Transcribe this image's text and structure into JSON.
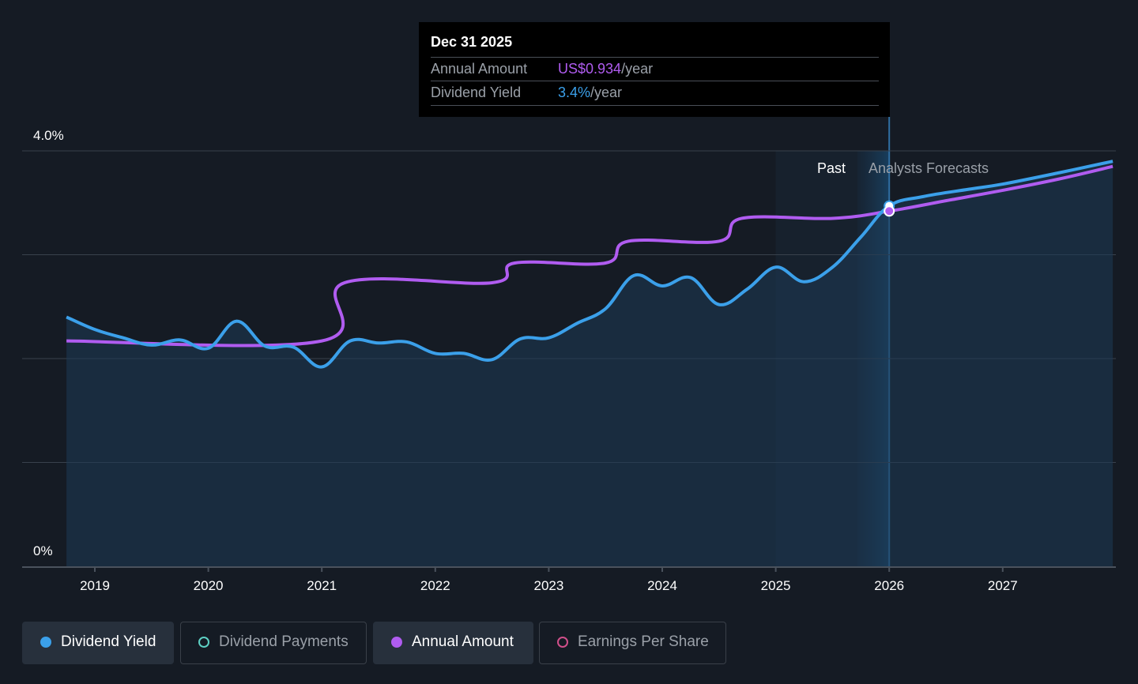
{
  "tooltip": {
    "date": "Dec 31 2025",
    "rows": [
      {
        "label": "Annual Amount",
        "value": "US$0.934",
        "suffix": "/year",
        "color": "#b05cf0"
      },
      {
        "label": "Dividend Yield",
        "value": "3.4%",
        "suffix": "/year",
        "color": "#3ba0ea"
      }
    ]
  },
  "regions": {
    "past": "Past",
    "forecast": "Analysts Forecasts"
  },
  "legend": [
    {
      "label": "Dividend Yield",
      "color": "#3ba0ea",
      "active": true,
      "filled": true
    },
    {
      "label": "Dividend Payments",
      "color": "#5ed0c4",
      "active": false,
      "filled": false
    },
    {
      "label": "Annual Amount",
      "color": "#b05cf0",
      "active": true,
      "filled": true
    },
    {
      "label": "Earnings Per Share",
      "color": "#d04f8a",
      "active": false,
      "filled": false
    }
  ],
  "chart_data": {
    "type": "line",
    "x_tick_labels": [
      "2019",
      "2020",
      "2021",
      "2022",
      "2023",
      "2024",
      "2025",
      "2026",
      "2027"
    ],
    "y_tick_labels": [
      "4.0%",
      "0%"
    ],
    "ylim": [
      0,
      4.0
    ],
    "xlim": [
      2018.4,
      2027.97
    ],
    "grid": true,
    "legend_position": "bottom",
    "series": [
      {
        "name": "Dividend Yield",
        "unit": "%",
        "color": "#3ba0ea",
        "x": [
          2018.75,
          2019.0,
          2019.25,
          2019.5,
          2019.75,
          2020.0,
          2020.25,
          2020.5,
          2020.75,
          2021.0,
          2021.25,
          2021.5,
          2021.75,
          2022.0,
          2022.25,
          2022.5,
          2022.75,
          2023.0,
          2023.25,
          2023.5,
          2023.75,
          2024.0,
          2024.25,
          2024.5,
          2024.75,
          2025.0,
          2025.25,
          2025.5,
          2025.75,
          2026.0,
          2026.3,
          2026.7,
          2027.0,
          2027.5,
          2027.97
        ],
        "y": [
          2.4,
          2.28,
          2.2,
          2.13,
          2.18,
          2.1,
          2.36,
          2.12,
          2.11,
          1.92,
          2.17,
          2.15,
          2.16,
          2.05,
          2.05,
          1.99,
          2.19,
          2.2,
          2.34,
          2.48,
          2.8,
          2.7,
          2.78,
          2.52,
          2.67,
          2.88,
          2.74,
          2.88,
          3.17,
          3.47,
          3.56,
          3.63,
          3.68,
          3.79,
          3.9
        ]
      },
      {
        "name": "Annual Amount",
        "unit": "US$/year",
        "color": "#b05cf0",
        "x": [
          2018.75,
          2021.0,
          2021.2,
          2022.5,
          2022.7,
          2023.5,
          2023.7,
          2024.5,
          2024.7,
          2025.5,
          2026.0,
          2026.5,
          2027.0,
          2027.5,
          2027.97
        ],
        "y": [
          2.17,
          2.17,
          2.73,
          2.73,
          2.92,
          2.92,
          3.13,
          3.13,
          3.35,
          3.35,
          3.42,
          3.52,
          3.62,
          3.73,
          3.85
        ]
      }
    ]
  }
}
